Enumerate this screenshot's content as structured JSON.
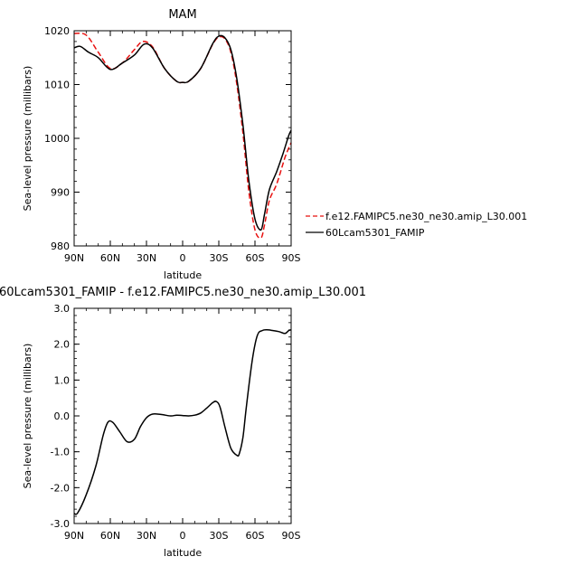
{
  "chart_data": [
    {
      "type": "line",
      "title": "MAM",
      "xlabel": "latitude",
      "ylabel": "Sea-level pressure (millibars)",
      "x_ticks": [
        "90N",
        "60N",
        "30N",
        "0",
        "30S",
        "60S",
        "90S"
      ],
      "y_ticks": [
        "980",
        "990",
        "1000",
        "1010",
        "1020"
      ],
      "xlim": [
        90,
        -90
      ],
      "ylim": [
        980,
        1020
      ],
      "series": [
        {
          "name": "f.e12.FAMIPC5.ne30_ne30.amip_L30.001",
          "color": "#e8100f",
          "dash": "dashed",
          "x": [
            90,
            80,
            70,
            60,
            50,
            40,
            33,
            25,
            15,
            5,
            0,
            -5,
            -15,
            -25,
            -30,
            -35,
            -40,
            -45,
            -50,
            -55,
            -60,
            -65,
            -68,
            -72,
            -78,
            -85,
            -90
          ],
          "y": [
            1019.5,
            1019.2,
            1016,
            1013,
            1014,
            1016.5,
            1018,
            1017,
            1013,
            1010.6,
            1010.4,
            1010.6,
            1013,
            1017.5,
            1018.8,
            1018.5,
            1016,
            1010,
            1001,
            990,
            983,
            981.5,
            984,
            988.5,
            991.5,
            996.5,
            999.2
          ]
        },
        {
          "name": "60Lcam5301_FAMIP",
          "color": "#000000",
          "dash": "solid",
          "x": [
            90,
            85,
            78,
            70,
            60,
            50,
            40,
            32,
            25,
            15,
            5,
            0,
            -5,
            -15,
            -25,
            -30,
            -35,
            -40,
            -45,
            -50,
            -55,
            -60,
            -65,
            -68,
            -72,
            -78,
            -83,
            -88,
            -90
          ],
          "y": [
            1016.8,
            1017.1,
            1016,
            1015,
            1012.8,
            1014,
            1015.5,
            1017.5,
            1016.8,
            1013,
            1010.6,
            1010.4,
            1010.6,
            1013,
            1017.6,
            1019,
            1018.7,
            1016.5,
            1011,
            1002.5,
            992,
            985,
            983,
            986,
            990.5,
            993.8,
            997,
            1000.5,
            1001.5
          ]
        }
      ]
    },
    {
      "type": "line",
      "title": "60Lcam5301_FAMIP  -  f.e12.FAMIPC5.ne30_ne30.amip_L30.001",
      "xlabel": "latitude",
      "ylabel": "Sea-level pressure (millibars)",
      "x_ticks": [
        "90N",
        "60N",
        "30N",
        "0",
        "30S",
        "60S",
        "90S"
      ],
      "y_ticks": [
        "-3.0",
        "-2.0",
        "-1.0",
        "0.0",
        "1.0",
        "2.0",
        "3.0"
      ],
      "xlim": [
        90,
        -90
      ],
      "ylim": [
        -3,
        3
      ],
      "series": [
        {
          "color": "#000000",
          "dash": "solid",
          "x": [
            90,
            87,
            80,
            72,
            66,
            62,
            58,
            52,
            46,
            40,
            35,
            30,
            25,
            18,
            10,
            5,
            0,
            -5,
            -10,
            -15,
            -20,
            -25,
            -28,
            -31,
            -35,
            -40,
            -45,
            -47,
            -50,
            -53,
            -58,
            -62,
            -66,
            -70,
            -75,
            -80,
            -85,
            -88,
            -90
          ],
          "y": [
            -2.72,
            -2.7,
            -2.2,
            -1.4,
            -0.55,
            -0.18,
            -0.18,
            -0.45,
            -0.72,
            -0.65,
            -0.3,
            -0.05,
            0.05,
            0.04,
            0.0,
            0.02,
            0.01,
            0.0,
            0.02,
            0.08,
            0.22,
            0.37,
            0.4,
            0.25,
            -0.3,
            -0.9,
            -1.1,
            -1.05,
            -0.6,
            0.3,
            1.6,
            2.25,
            2.38,
            2.4,
            2.38,
            2.35,
            2.3,
            2.38,
            2.4
          ]
        }
      ]
    }
  ]
}
